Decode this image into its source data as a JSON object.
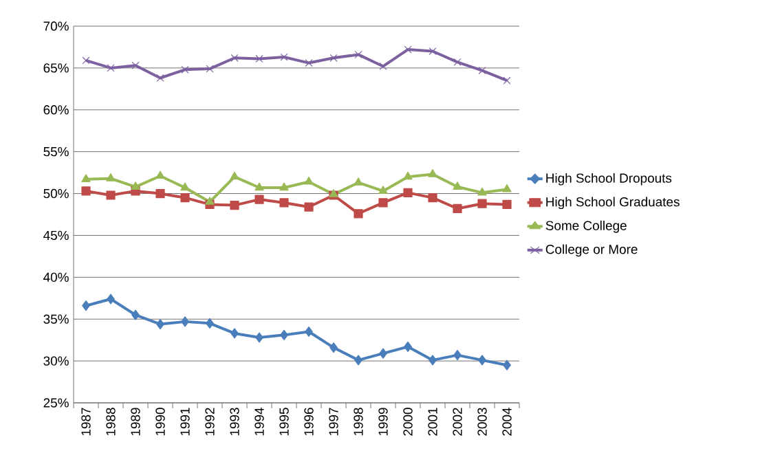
{
  "chart_data": {
    "type": "line",
    "categories": [
      "1987",
      "1988",
      "1989",
      "1990",
      "1991",
      "1992",
      "1993",
      "1994",
      "1995",
      "1996",
      "1997",
      "1998",
      "1999",
      "2000",
      "2001",
      "2002",
      "2003",
      "2004"
    ],
    "series": [
      {
        "name": "High School Dropouts",
        "color": "#4a7ebb",
        "marker": "diamond",
        "values": [
          36.6,
          37.4,
          35.5,
          34.4,
          34.7,
          34.5,
          33.3,
          32.8,
          33.1,
          33.5,
          31.6,
          30.1,
          30.9,
          31.7,
          30.1,
          30.7,
          30.1,
          29.5
        ]
      },
      {
        "name": "High School Graduates",
        "color": "#be4b48",
        "marker": "square",
        "values": [
          50.3,
          49.8,
          50.3,
          50.0,
          49.5,
          48.7,
          48.6,
          49.3,
          48.9,
          48.4,
          49.8,
          47.6,
          48.9,
          50.1,
          49.5,
          48.2,
          48.8,
          48.7
        ]
      },
      {
        "name": "Some College",
        "color": "#98b954",
        "marker": "triangle",
        "values": [
          51.7,
          51.8,
          50.8,
          52.1,
          50.7,
          49.0,
          52.0,
          50.7,
          50.7,
          51.4,
          49.9,
          51.3,
          50.3,
          52.0,
          52.3,
          50.8,
          50.1,
          50.5
        ]
      },
      {
        "name": "College or More",
        "color": "#7d60a0",
        "marker": "cross",
        "values": [
          65.9,
          65.0,
          65.3,
          63.8,
          64.8,
          64.9,
          66.2,
          66.1,
          66.3,
          65.6,
          66.2,
          66.6,
          65.2,
          67.2,
          67.0,
          65.7,
          64.7,
          63.5
        ]
      }
    ],
    "ylim": [
      25,
      70
    ],
    "yticks": [
      {
        "value": 25,
        "label": "25%"
      },
      {
        "value": 30,
        "label": "30%"
      },
      {
        "value": 35,
        "label": "35%"
      },
      {
        "value": 40,
        "label": "40%"
      },
      {
        "value": 45,
        "label": "45%"
      },
      {
        "value": 50,
        "label": "50%"
      },
      {
        "value": 55,
        "label": "55%"
      },
      {
        "value": 60,
        "label": "60%"
      },
      {
        "value": 65,
        "label": "65%"
      },
      {
        "value": 70,
        "label": "70%"
      }
    ],
    "grid": "y",
    "legend": "right",
    "line_style": "solid"
  }
}
